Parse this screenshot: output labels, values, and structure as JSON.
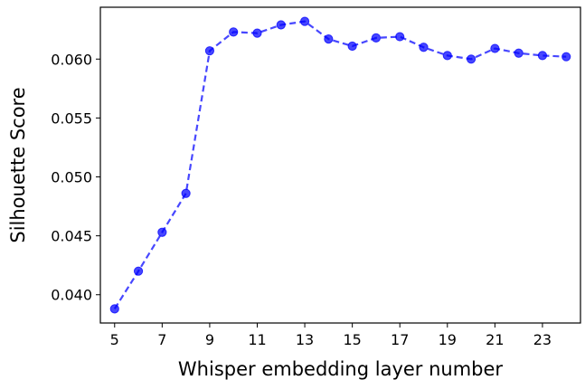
{
  "chart_data": {
    "type": "line",
    "xlabel": "Whisper embedding layer number",
    "ylabel": "Silhouette Score",
    "xlim": [
      4.4,
      24.6
    ],
    "ylim": [
      0.0376,
      0.0644
    ],
    "xticks": [
      5,
      7,
      9,
      11,
      13,
      15,
      17,
      19,
      21,
      23
    ],
    "yticks": [
      0.04,
      0.045,
      0.05,
      0.055,
      0.06
    ],
    "ytick_labels": [
      "0.040",
      "0.045",
      "0.050",
      "0.055",
      "0.060"
    ],
    "grid": false,
    "series": [
      {
        "color": "#0000ff",
        "linestyle": "dashed",
        "marker": "circle",
        "x": [
          5,
          6,
          7,
          8,
          9,
          10,
          11,
          12,
          13,
          14,
          15,
          16,
          17,
          18,
          19,
          20,
          21,
          22,
          23,
          24
        ],
        "y": [
          0.0388,
          0.042,
          0.0453,
          0.0486,
          0.0607,
          0.0623,
          0.0622,
          0.0629,
          0.0632,
          0.0617,
          0.0611,
          0.0618,
          0.0619,
          0.061,
          0.0603,
          0.06,
          0.0609,
          0.0605,
          0.0603,
          0.0602
        ]
      }
    ]
  }
}
